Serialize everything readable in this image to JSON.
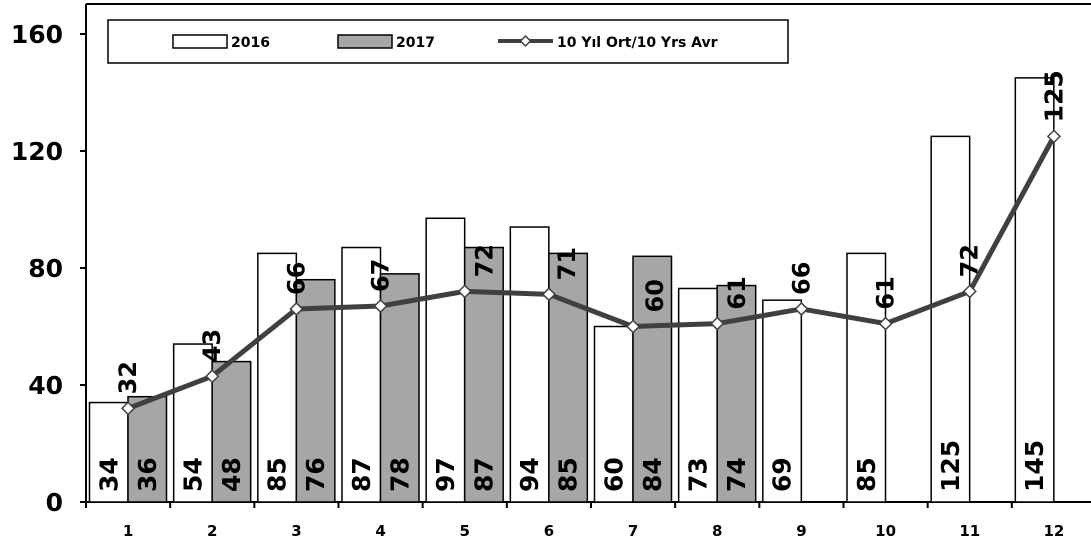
{
  "chart_data": {
    "type": "bar",
    "categories": [
      "1",
      "2",
      "3",
      "4",
      "5",
      "6",
      "7",
      "8",
      "9",
      "10",
      "11",
      "12"
    ],
    "series": [
      {
        "name": "2016",
        "type": "bar",
        "color": "#ffffff",
        "values": [
          34,
          54,
          85,
          87,
          97,
          94,
          60,
          73,
          69,
          85,
          125,
          145
        ]
      },
      {
        "name": "2017",
        "type": "bar",
        "color": "#a6a6a6",
        "values": [
          36,
          48,
          76,
          78,
          87,
          85,
          84,
          74,
          null,
          null,
          null,
          null
        ]
      },
      {
        "name": "10 Yıl Ort/10 Yrs Avr",
        "type": "line",
        "color": "#404040",
        "values": [
          32,
          43,
          66,
          67,
          72,
          71,
          60,
          61,
          66,
          61,
          72,
          125
        ]
      }
    ],
    "ylim": [
      0,
      160
    ],
    "yticks": [
      "0",
      "40",
      "80",
      "120",
      "160"
    ],
    "legend_position": "top",
    "grid": false
  }
}
